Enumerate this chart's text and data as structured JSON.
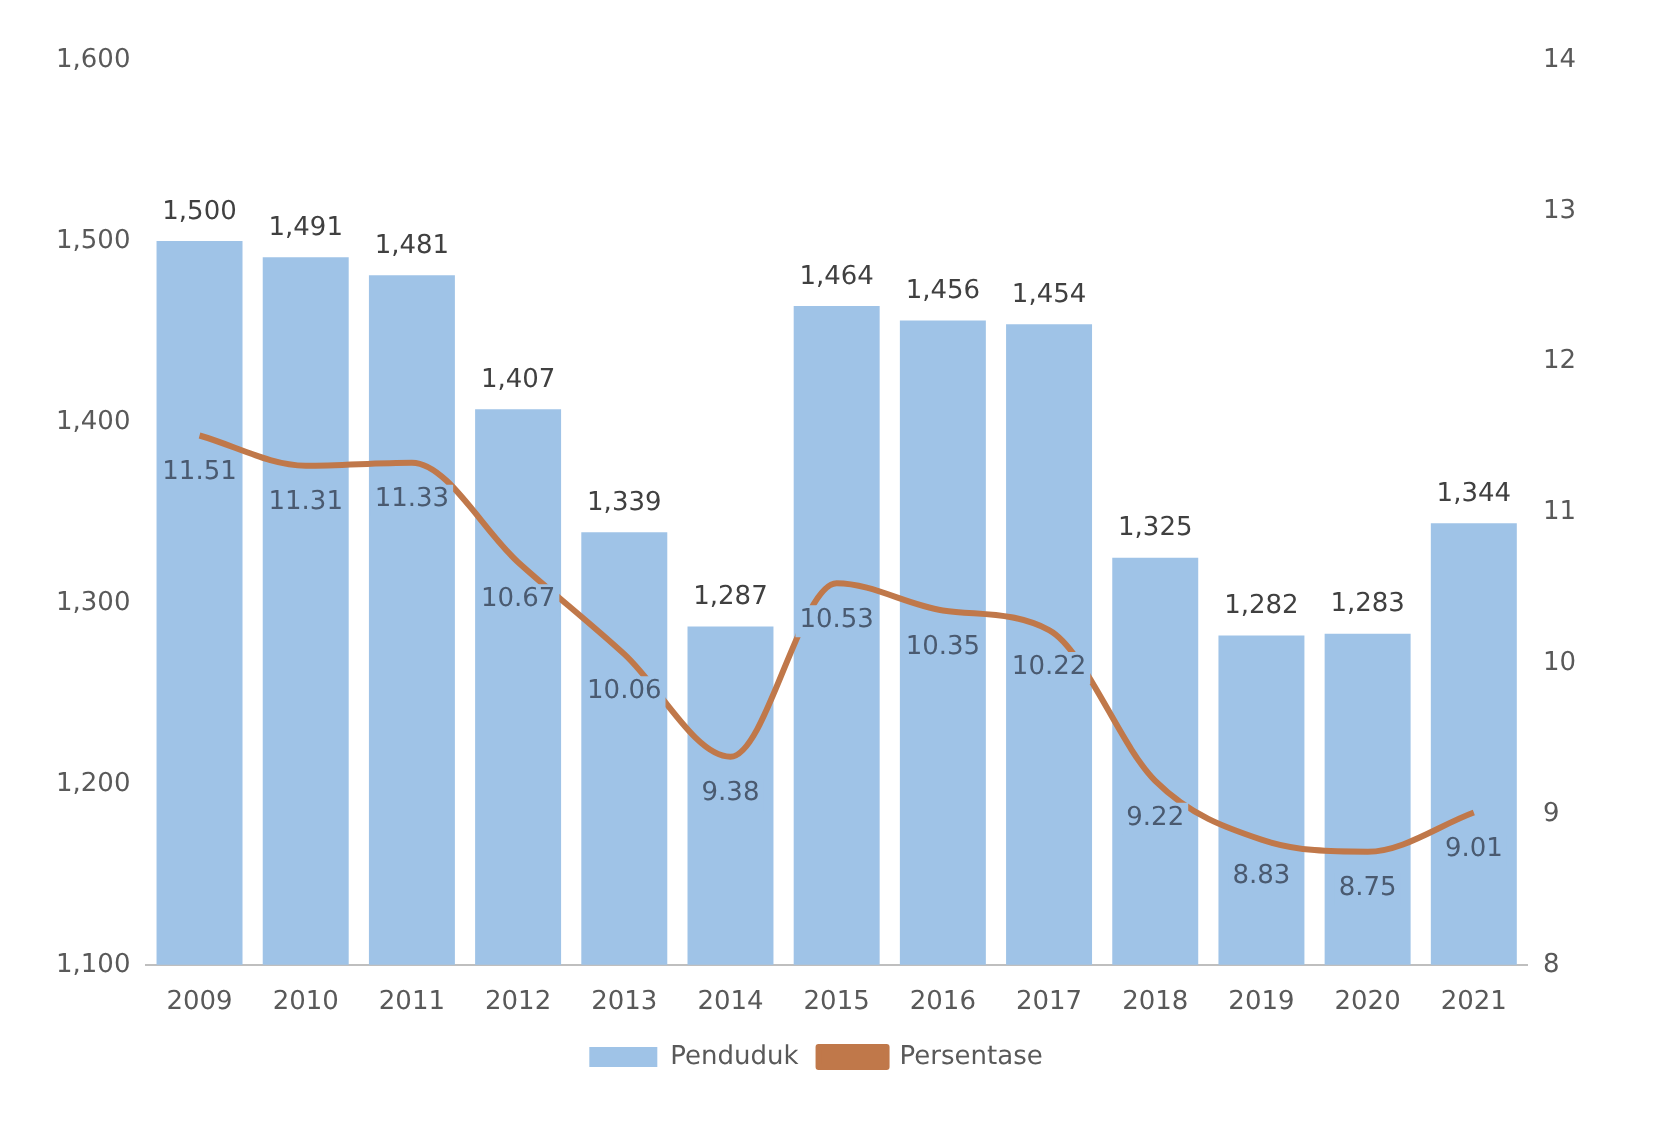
{
  "chart_data": {
    "type": "bar",
    "categories": [
      "2009",
      "2010",
      "2011",
      "2012",
      "2013",
      "2014",
      "2015",
      "2016",
      "2017",
      "2018",
      "2019",
      "2020",
      "2021"
    ],
    "series": [
      {
        "name": "Penduduk",
        "color": "#9fc3e7",
        "values": [
          1500,
          1491,
          1481,
          1407,
          1339,
          1287,
          1464,
          1456,
          1454,
          1325,
          1282,
          1283,
          1344
        ],
        "value_labels": [
          "1,500",
          "1,491",
          "1,481",
          "1,407",
          "1,339",
          "1,287",
          "1,464",
          "1,456",
          "1,454",
          "1,325",
          "1,282",
          "1,283",
          "1,344"
        ]
      },
      {
        "name": "Persentase",
        "type": "line",
        "axis": "y2",
        "color": "#c0784a",
        "values": [
          11.51,
          11.31,
          11.33,
          10.67,
          10.06,
          9.38,
          10.53,
          10.35,
          10.22,
          9.22,
          8.83,
          8.75,
          9.01
        ],
        "value_labels": [
          "11.51",
          "11.31",
          "11.33",
          "10.67",
          "10.06",
          "9.38",
          "10.53",
          "10.35",
          "10.22",
          "9.22",
          "8.83",
          "8.75",
          "9.01"
        ]
      }
    ],
    "ylim": [
      1100,
      1600
    ],
    "yticks": [
      {
        "value": 1100,
        "label": "1,100"
      },
      {
        "value": 1200,
        "label": "1,200"
      },
      {
        "value": 1300,
        "label": "1,300"
      },
      {
        "value": 1400,
        "label": "1,400"
      },
      {
        "value": 1500,
        "label": "1,500"
      },
      {
        "value": 1600,
        "label": "1,600"
      }
    ],
    "y2lim": [
      8,
      14
    ],
    "y2ticks": [
      8,
      9,
      10,
      11,
      12,
      13,
      14
    ],
    "grid": false,
    "legend": "bottom",
    "marker": "none"
  }
}
